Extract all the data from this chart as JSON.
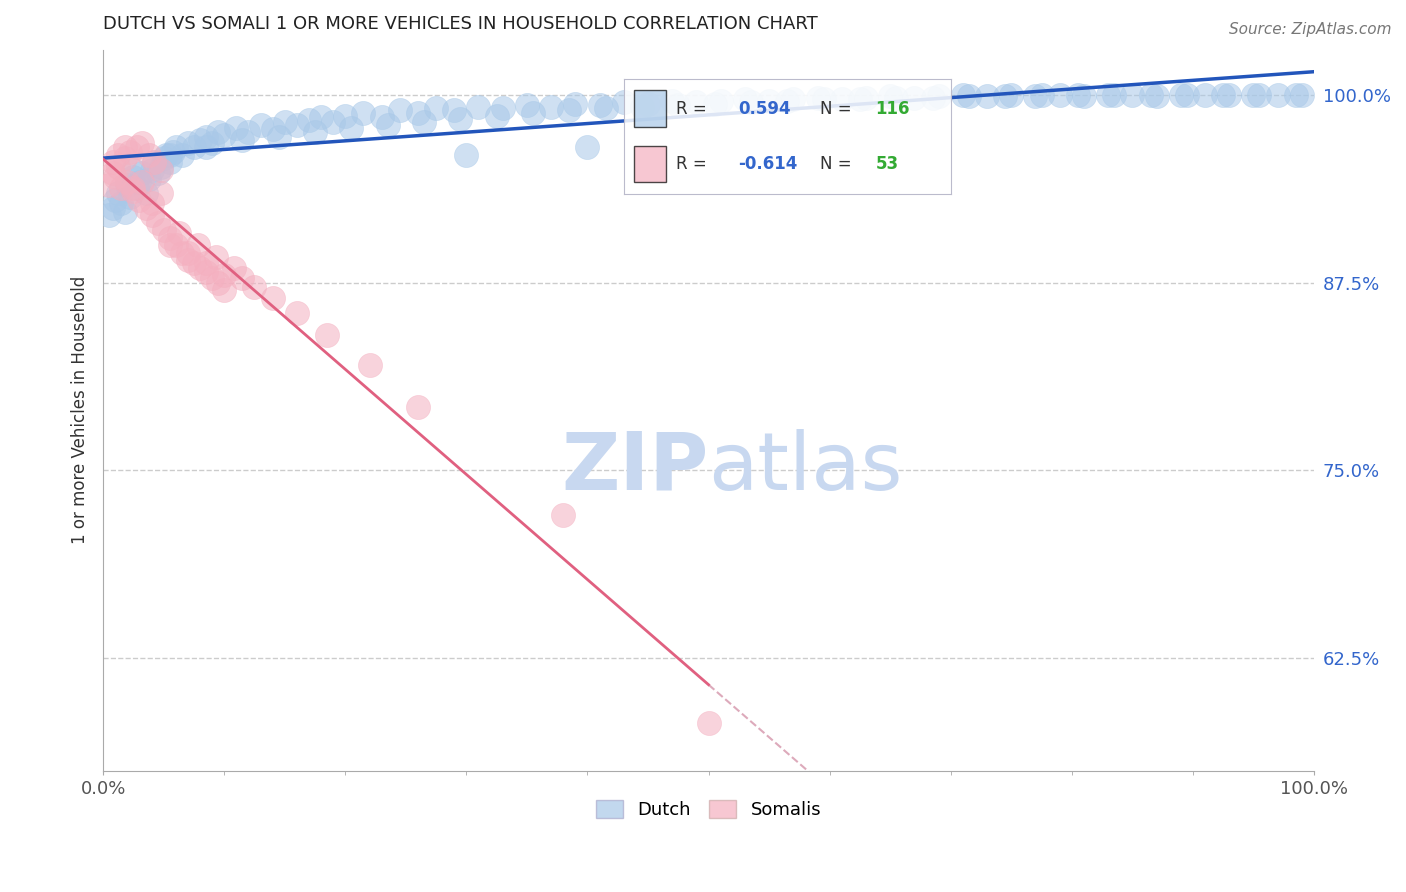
{
  "title": "DUTCH VS SOMALI 1 OR MORE VEHICLES IN HOUSEHOLD CORRELATION CHART",
  "source_text": "Source: ZipAtlas.com",
  "ylabel": "1 or more Vehicles in Household",
  "xlim": [
    0.0,
    1.0
  ],
  "ylim": [
    0.55,
    1.03
  ],
  "yticks": [
    0.625,
    0.75,
    0.875,
    1.0
  ],
  "ytick_labels": [
    "62.5%",
    "75.0%",
    "87.5%",
    "100.0%"
  ],
  "xtick_labels": [
    "0.0%",
    "100.0%"
  ],
  "xticks": [
    0.0,
    1.0
  ],
  "dutch_color": "#a8c8e8",
  "somali_color": "#f4b0c0",
  "dutch_line_color": "#2255bb",
  "somali_line_color": "#e06080",
  "somali_dash_color": "#ddaabb",
  "dutch_R": 0.594,
  "dutch_N": 116,
  "somali_R": -0.614,
  "somali_N": 53,
  "legend_R_color": "#3366cc",
  "legend_N_color": "#33aa33",
  "watermark_zip": "ZIP",
  "watermark_atlas": "atlas",
  "watermark_color": "#c8d8f0",
  "dutch_x": [
    0.005,
    0.008,
    0.01,
    0.012,
    0.015,
    0.018,
    0.02,
    0.022,
    0.025,
    0.028,
    0.03,
    0.032,
    0.035,
    0.038,
    0.04,
    0.042,
    0.045,
    0.048,
    0.05,
    0.052,
    0.055,
    0.058,
    0.06,
    0.065,
    0.07,
    0.075,
    0.08,
    0.085,
    0.09,
    0.095,
    0.1,
    0.11,
    0.12,
    0.13,
    0.14,
    0.15,
    0.16,
    0.17,
    0.18,
    0.19,
    0.2,
    0.215,
    0.23,
    0.245,
    0.26,
    0.275,
    0.29,
    0.31,
    0.33,
    0.35,
    0.37,
    0.39,
    0.41,
    0.43,
    0.45,
    0.47,
    0.49,
    0.51,
    0.53,
    0.55,
    0.57,
    0.59,
    0.61,
    0.63,
    0.65,
    0.67,
    0.69,
    0.71,
    0.73,
    0.75,
    0.77,
    0.79,
    0.81,
    0.83,
    0.85,
    0.87,
    0.89,
    0.91,
    0.93,
    0.95,
    0.97,
    0.99,
    0.025,
    0.055,
    0.085,
    0.115,
    0.145,
    0.175,
    0.205,
    0.235,
    0.265,
    0.295,
    0.325,
    0.355,
    0.385,
    0.415,
    0.445,
    0.475,
    0.505,
    0.535,
    0.565,
    0.595,
    0.625,
    0.655,
    0.685,
    0.715,
    0.745,
    0.775,
    0.805,
    0.835,
    0.865,
    0.895,
    0.925,
    0.955,
    0.985,
    0.3,
    0.4
  ],
  "dutch_y": [
    0.92,
    0.925,
    0.93,
    0.935,
    0.928,
    0.922,
    0.94,
    0.932,
    0.945,
    0.938,
    0.942,
    0.948,
    0.935,
    0.944,
    0.95,
    0.955,
    0.948,
    0.952,
    0.958,
    0.96,
    0.955,
    0.962,
    0.965,
    0.96,
    0.968,
    0.965,
    0.97,
    0.972,
    0.968,
    0.975,
    0.973,
    0.978,
    0.975,
    0.98,
    0.977,
    0.982,
    0.98,
    0.983,
    0.985,
    0.982,
    0.986,
    0.988,
    0.985,
    0.99,
    0.988,
    0.991,
    0.99,
    0.992,
    0.991,
    0.993,
    0.992,
    0.994,
    0.993,
    0.995,
    0.994,
    0.996,
    0.995,
    0.996,
    0.997,
    0.996,
    0.997,
    0.998,
    0.997,
    0.998,
    0.999,
    0.998,
    0.999,
    1.0,
    0.999,
    1.0,
    0.999,
    1.0,
    0.999,
    1.0,
    1.0,
    0.999,
    1.0,
    1.0,
    1.0,
    1.0,
    1.0,
    1.0,
    0.95,
    0.96,
    0.965,
    0.97,
    0.972,
    0.975,
    0.978,
    0.98,
    0.982,
    0.984,
    0.986,
    0.988,
    0.99,
    0.991,
    0.992,
    0.993,
    0.994,
    0.995,
    0.996,
    0.997,
    0.997,
    0.998,
    0.998,
    0.999,
    0.999,
    1.0,
    1.0,
    1.0,
    1.0,
    1.0,
    1.0,
    1.0,
    1.0,
    0.96,
    0.965
  ],
  "somali_x": [
    0.005,
    0.008,
    0.01,
    0.012,
    0.015,
    0.018,
    0.02,
    0.022,
    0.025,
    0.028,
    0.03,
    0.032,
    0.035,
    0.038,
    0.04,
    0.042,
    0.045,
    0.048,
    0.05,
    0.055,
    0.06,
    0.065,
    0.07,
    0.075,
    0.08,
    0.085,
    0.09,
    0.095,
    0.1,
    0.008,
    0.012,
    0.018,
    0.025,
    0.032,
    0.04,
    0.048,
    0.055,
    0.063,
    0.07,
    0.078,
    0.085,
    0.093,
    0.1,
    0.108,
    0.115,
    0.125,
    0.14,
    0.16,
    0.185,
    0.22,
    0.26,
    0.38,
    0.5
  ],
  "somali_y": [
    0.94,
    0.948,
    0.945,
    0.952,
    0.938,
    0.958,
    0.942,
    0.962,
    0.936,
    0.965,
    0.93,
    0.968,
    0.925,
    0.96,
    0.92,
    0.955,
    0.915,
    0.95,
    0.91,
    0.905,
    0.9,
    0.895,
    0.89,
    0.888,
    0.885,
    0.882,
    0.878,
    0.875,
    0.87,
    0.955,
    0.96,
    0.965,
    0.938,
    0.942,
    0.928,
    0.935,
    0.9,
    0.908,
    0.895,
    0.9,
    0.888,
    0.892,
    0.88,
    0.885,
    0.878,
    0.872,
    0.865,
    0.855,
    0.84,
    0.82,
    0.792,
    0.72,
    0.582
  ]
}
